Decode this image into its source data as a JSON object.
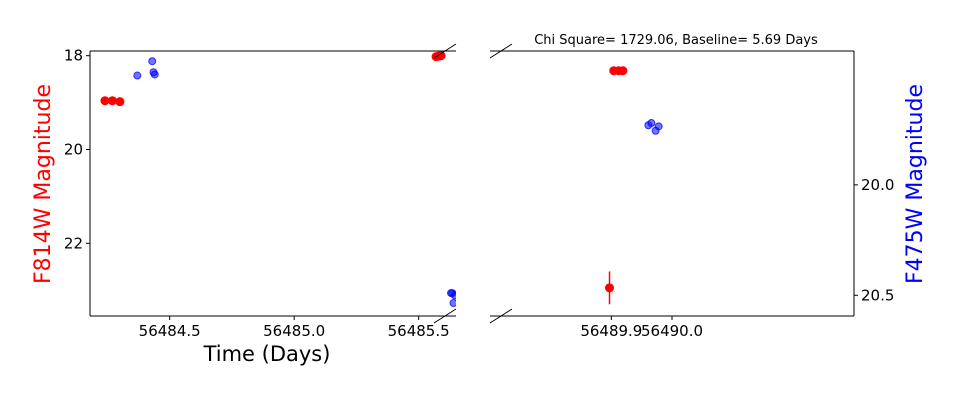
{
  "chart_data": {
    "type": "scatter",
    "title": "Chi Square= 1729.06, Baseline= 5.69 Days",
    "xlabel": "Time (Days)",
    "ylabel_left": "F814W Magnitude",
    "ylabel_right": "F475W Magnitude",
    "colors": {
      "f814w": "#ff0000",
      "f475w": "#0000ff"
    },
    "panels": [
      {
        "name": "left",
        "xlim": [
          56484.18,
          56485.65
        ],
        "xticks": [
          56484.5,
          56485.0,
          56485.5
        ],
        "xtick_labels": [
          "56484.5",
          "56485.0",
          "56485.5"
        ],
        "ylim_left": [
          23.55,
          17.9
        ],
        "yticks_left": [
          18,
          20,
          22
        ],
        "ytick_labels_left": [
          "18",
          "20",
          "22"
        ],
        "ylim_right": [
          20.5938,
          19.3938
        ],
        "series": [
          {
            "name": "F814W",
            "axis": "left",
            "x": [
              56484.24,
              56484.27,
              56484.3,
              56485.57,
              56485.58,
              56485.59
            ],
            "y": [
              18.96,
              18.96,
              18.98,
              18.02,
              18.01,
              18.0
            ]
          },
          {
            "name": "F475W",
            "axis": "right",
            "x": [
              56484.37,
              56484.43,
              56484.435,
              56484.44,
              56485.63,
              56485.635,
              56485.645,
              56485.64
            ],
            "y": [
              19.505,
              19.44,
              19.49,
              19.5,
              20.49,
              20.49,
              20.5,
              20.535
            ]
          }
        ]
      },
      {
        "name": "right",
        "xlim": [
          56489.7,
          56490.3
        ],
        "xticks": [
          56489.9,
          56490.0
        ],
        "xtick_labels": [
          "56489.9",
          "56490.0"
        ],
        "ylim_left": [
          23.55,
          17.9
        ],
        "ylim_right": [
          20.5938,
          19.3938
        ],
        "yticks_right": [
          20.0,
          20.5
        ],
        "ytick_labels_right": [
          "20.0",
          "20.5"
        ],
        "series": [
          {
            "name": "F814W",
            "axis": "left",
            "x": [
              56489.897,
              56489.904,
              56489.912,
              56489.919
            ],
            "y": [
              22.95,
              18.32,
              18.32,
              18.32
            ],
            "yerr": [
              0.35,
              0,
              0,
              0
            ]
          },
          {
            "name": "F475W",
            "axis": "right",
            "x": [
              56489.961,
              56489.966,
              56489.973,
              56489.978
            ],
            "y": [
              19.73,
              19.72,
              19.755,
              19.735
            ]
          }
        ]
      }
    ]
  }
}
